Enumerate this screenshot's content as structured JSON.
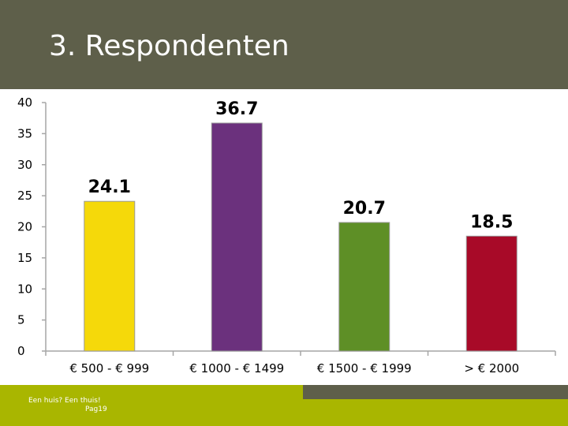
{
  "header": {
    "title": "3. Respondenten"
  },
  "footer": {
    "caption": "Een huis? Een thuis!",
    "page": "Pag19"
  },
  "colors": {
    "header": "#5e5f4a",
    "footer": "#a9b600",
    "axis": "#a6a6a6"
  },
  "chart_data": {
    "type": "bar",
    "categories": [
      "€ 500 - € 999",
      "€ 1000 - € 1499",
      "€ 1500 - € 1999",
      "> € 2000"
    ],
    "values": [
      24.1,
      36.7,
      20.7,
      18.5
    ],
    "data_labels": [
      "24.1",
      "36.7",
      "20.7",
      "18.5"
    ],
    "colors": [
      "#f5d90a",
      "#6b317d",
      "#5e8f26",
      "#a80a28"
    ],
    "ylim": [
      0,
      40
    ],
    "yticks": [
      0,
      5,
      10,
      15,
      20,
      25,
      30,
      35,
      40
    ],
    "legend": "none",
    "grid": false
  }
}
